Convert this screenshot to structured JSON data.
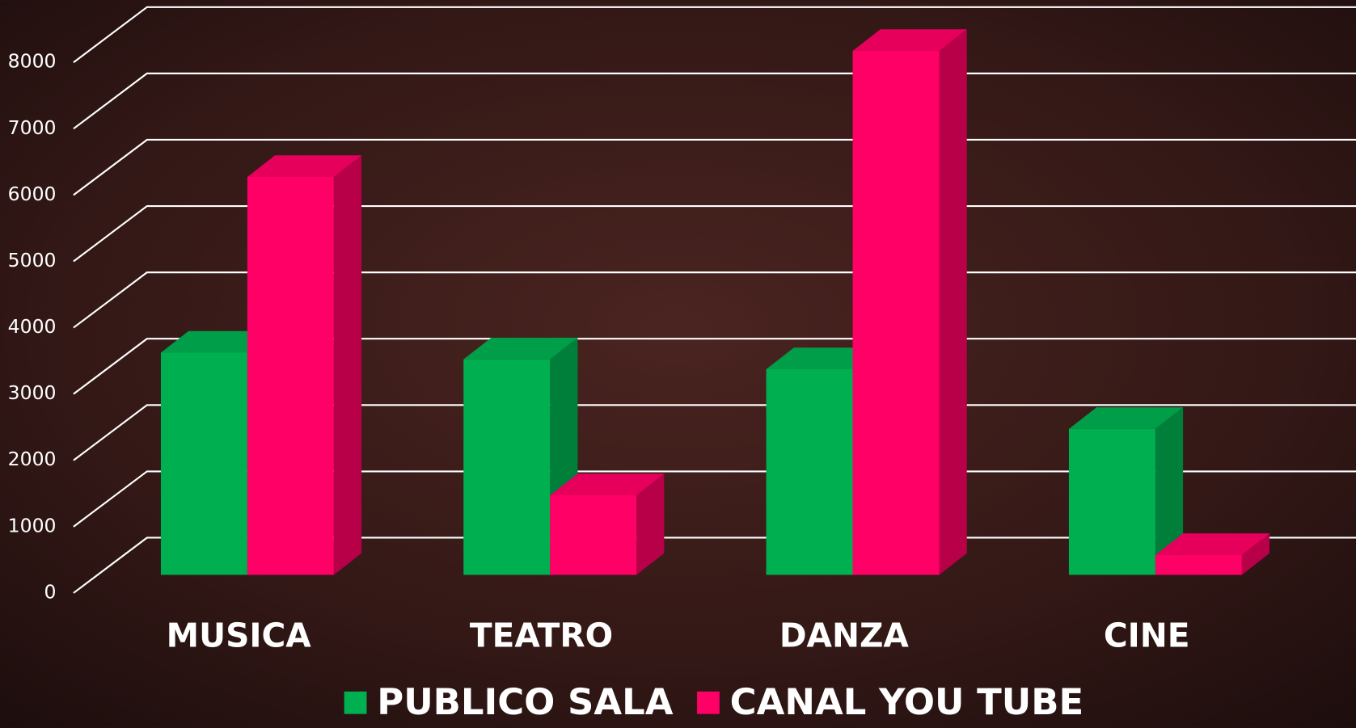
{
  "chart_data": {
    "type": "bar3d",
    "categories": [
      "MUSICA",
      "TEATRO",
      "DANZA",
      "CINE"
    ],
    "series": [
      {
        "name": "PUBLICO SALA",
        "color": "#00b050",
        "values": [
          3350,
          3250,
          3100,
          2200
        ]
      },
      {
        "name": "CANAL YOU TUBE",
        "color": "#ff0066",
        "values": [
          6000,
          1200,
          7900,
          300
        ]
      }
    ],
    "ylim": [
      0,
      8000
    ],
    "yticks": [
      0,
      1000,
      2000,
      3000,
      4000,
      5000,
      6000,
      7000,
      8000
    ],
    "grid": true,
    "legend": "bottom"
  }
}
